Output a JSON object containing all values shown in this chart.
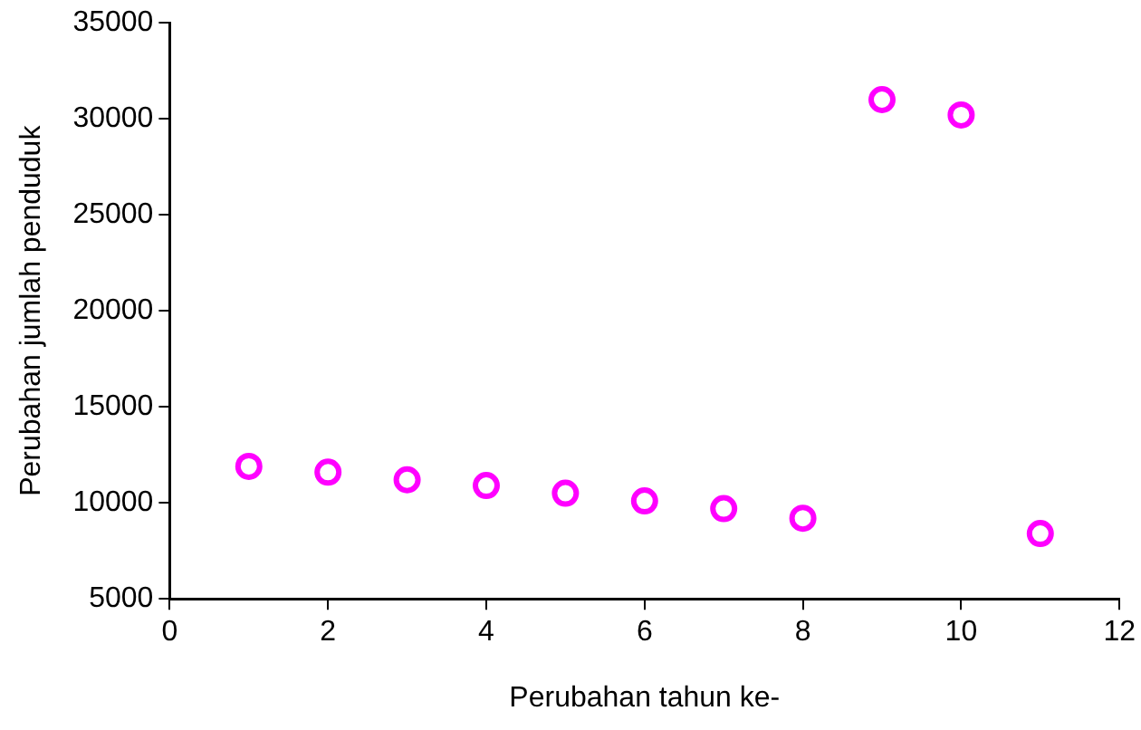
{
  "chart_data": {
    "type": "scatter",
    "xlabel": "Perubahan tahun ke-",
    "ylabel": "Perubahan jumlah penduduk",
    "x": [
      1,
      2,
      3,
      4,
      5,
      6,
      7,
      8,
      9,
      10,
      11
    ],
    "series": [
      {
        "color": "#ff00ff",
        "values": [
          11900,
          11600,
          11200,
          10900,
          10500,
          10100,
          9700,
          9200,
          31000,
          30200,
          8400
        ]
      }
    ],
    "xlim": [
      0,
      12
    ],
    "xticks": [
      0,
      2,
      4,
      6,
      8,
      10,
      12
    ],
    "ylim": [
      5000,
      35000
    ],
    "yticks": [
      5000,
      10000,
      15000,
      20000,
      25000,
      30000,
      35000
    ],
    "grid": false,
    "legend": false,
    "marker": "circle"
  }
}
